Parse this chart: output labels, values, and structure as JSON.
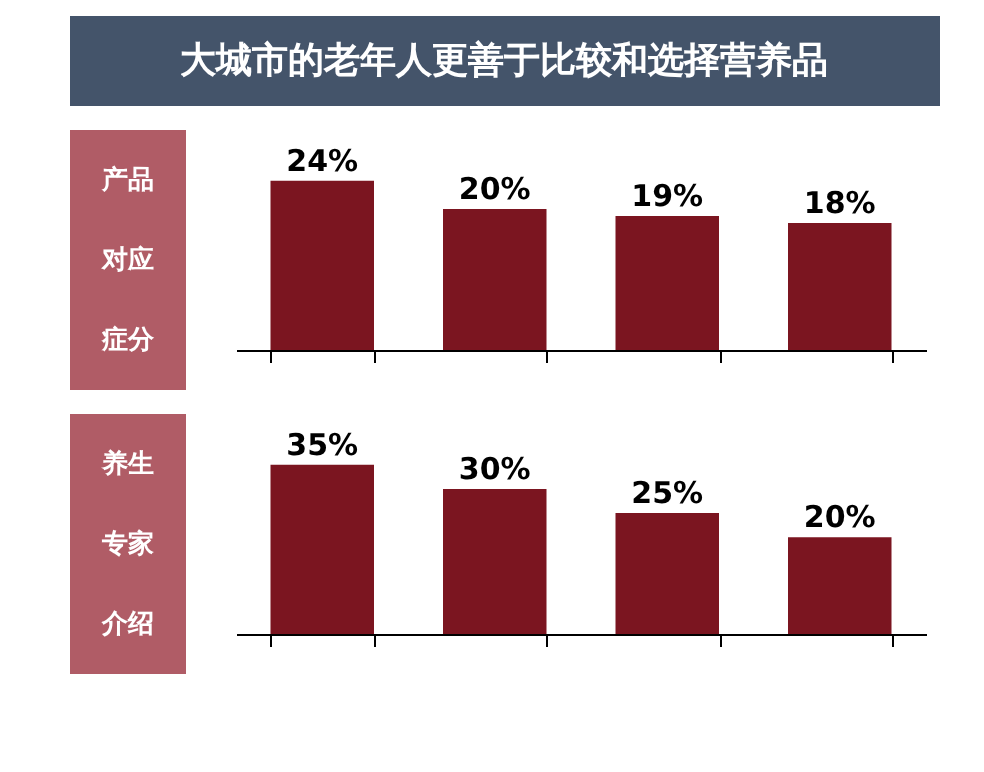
{
  "chart_data": [
    {
      "type": "bar",
      "title": "大城市的老年人更善于比较和选择营养品",
      "ylabel": "产品对应症分",
      "categories": [
        null,
        null,
        null,
        null
      ],
      "values": [
        24,
        20,
        19,
        18
      ],
      "color": "#7b1520",
      "value_labels": [
        "24%",
        "20%",
        "19%",
        "18%"
      ],
      "grid": false
    },
    {
      "type": "bar",
      "ylabel": "养生专家介绍",
      "categories": [
        null,
        null,
        null,
        null
      ],
      "values": [
        35,
        30,
        25,
        20
      ],
      "color": "#7b1520",
      "value_labels": [
        "35%",
        "30%",
        "25%",
        "20%"
      ],
      "grid": false
    }
  ]
}
